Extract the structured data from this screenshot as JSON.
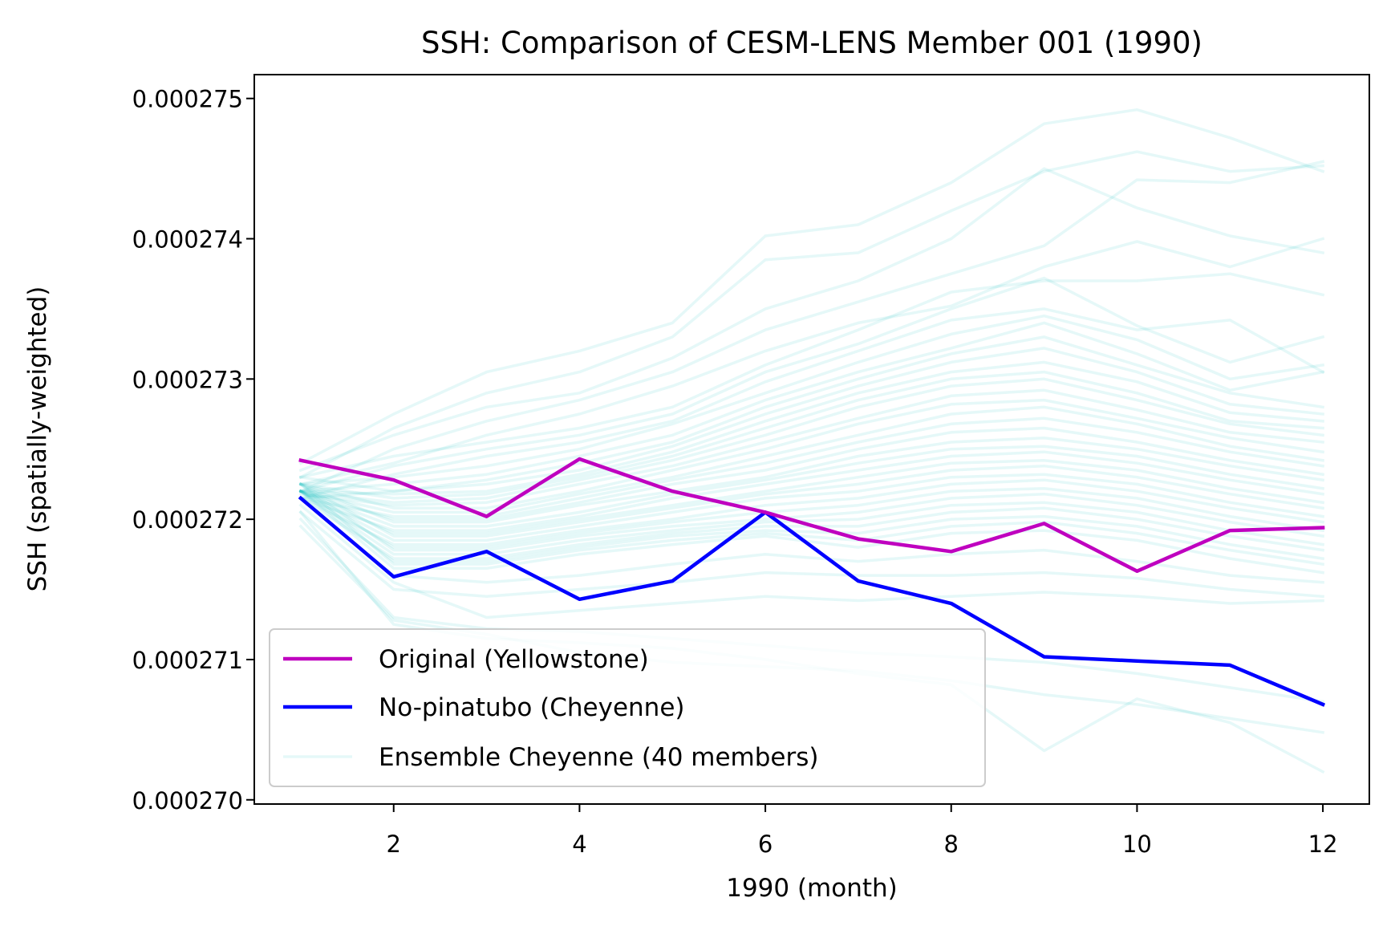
{
  "chart_data": {
    "type": "line",
    "title": "SSH: Comparison of CESM-LENS Member 001 (1990)",
    "xlabel": "1990 (month)",
    "ylabel": "SSH (spatially-weighted)",
    "xlim": [
      0.5,
      12.5
    ],
    "ylim": [
      0.00026997,
      0.00027517
    ],
    "xticks": [
      2,
      4,
      6,
      8,
      10,
      12
    ],
    "xtick_labels": [
      "2",
      "4",
      "6",
      "8",
      "10",
      "12"
    ],
    "yticks": [
      0.00027,
      0.000271,
      0.000272,
      0.000273,
      0.000274,
      0.000275
    ],
    "ytick_labels": [
      "0.000270",
      "0.000271",
      "0.000272",
      "0.000273",
      "0.000274",
      "0.000275"
    ],
    "grid": false,
    "legend_position": "lower-left",
    "x": [
      1,
      2,
      3,
      4,
      5,
      6,
      7,
      8,
      9,
      10,
      11,
      12
    ],
    "series": [
      {
        "name": "Original (Yellowstone)",
        "color": "#bf00bf",
        "values": [
          0.00027242,
          0.00027228,
          0.00027202,
          0.00027243,
          0.0002722,
          0.00027205,
          0.00027186,
          0.00027177,
          0.00027197,
          0.00027163,
          0.00027192,
          0.00027194
        ]
      },
      {
        "name": "No-pinatubo (Cheyenne)",
        "color": "#0000ff",
        "values": [
          0.00027215,
          0.00027159,
          0.00027177,
          0.00027143,
          0.00027156,
          0.00027205,
          0.00027156,
          0.0002714,
          0.00027102,
          0.00027099,
          0.00027096,
          0.00027068
        ]
      },
      {
        "name": "Ensemble Cheyenne (40 members)",
        "color": "#00bfbf",
        "opacity": 0.1,
        "member_values": [
          [
            0.0002724,
            0.00027275,
            0.00027305,
            0.0002732,
            0.0002734,
            0.00027402,
            0.0002741,
            0.0002744,
            0.00027482,
            0.00027492,
            0.00027472,
            0.00027448
          ],
          [
            0.0002723,
            0.00027265,
            0.0002729,
            0.00027305,
            0.0002733,
            0.00027385,
            0.0002739,
            0.0002742,
            0.00027448,
            0.00027462,
            0.00027448,
            0.00027452
          ],
          [
            0.00027235,
            0.0002726,
            0.0002728,
            0.0002729,
            0.00027315,
            0.0002735,
            0.0002737,
            0.000274,
            0.0002745,
            0.00027422,
            0.00027402,
            0.0002739
          ],
          [
            0.0002722,
            0.0002725,
            0.0002727,
            0.00027285,
            0.00027305,
            0.00027335,
            0.00027355,
            0.00027375,
            0.00027395,
            0.00027442,
            0.0002744,
            0.00027455
          ],
          [
            0.00027225,
            0.0002724,
            0.0002726,
            0.00027275,
            0.00027295,
            0.0002732,
            0.0002734,
            0.00027352,
            0.0002738,
            0.00027398,
            0.0002738,
            0.000274
          ],
          [
            0.0002723,
            0.00027245,
            0.00027255,
            0.00027265,
            0.0002728,
            0.0002731,
            0.00027335,
            0.00027362,
            0.0002737,
            0.0002737,
            0.00027375,
            0.0002736
          ],
          [
            0.0002722,
            0.00027238,
            0.0002725,
            0.0002726,
            0.00027275,
            0.00027305,
            0.00027325,
            0.0002735,
            0.00027372,
            0.00027338,
            0.00027312,
            0.0002733
          ],
          [
            0.00027215,
            0.00027232,
            0.00027245,
            0.00027255,
            0.0002727,
            0.00027298,
            0.0002732,
            0.00027342,
            0.0002735,
            0.00027335,
            0.00027342,
            0.00027305
          ],
          [
            0.00027225,
            0.0002723,
            0.00027238,
            0.0002725,
            0.00027268,
            0.0002729,
            0.00027312,
            0.00027332,
            0.00027345,
            0.00027328,
            0.000273,
            0.0002731
          ],
          [
            0.0002722,
            0.00027225,
            0.00027232,
            0.00027245,
            0.0002726,
            0.00027285,
            0.00027305,
            0.00027322,
            0.0002734,
            0.00027318,
            0.00027292,
            0.00027305
          ],
          [
            0.0002723,
            0.0002722,
            0.00027228,
            0.0002724,
            0.00027255,
            0.0002728,
            0.000273,
            0.00027318,
            0.0002733,
            0.0002731,
            0.0002729,
            0.0002728
          ],
          [
            0.00027215,
            0.0002722,
            0.00027225,
            0.00027235,
            0.00027252,
            0.00027275,
            0.00027295,
            0.00027312,
            0.00027322,
            0.00027305,
            0.00027282,
            0.00027275
          ],
          [
            0.0002722,
            0.00027218,
            0.0002722,
            0.00027232,
            0.00027248,
            0.0002727,
            0.0002729,
            0.00027305,
            0.00027312,
            0.00027298,
            0.00027276,
            0.0002727
          ],
          [
            0.00027225,
            0.00027215,
            0.00027218,
            0.0002723,
            0.00027245,
            0.00027265,
            0.00027285,
            0.000273,
            0.00027305,
            0.0002729,
            0.0002727,
            0.00027265
          ],
          [
            0.0002722,
            0.00027212,
            0.00027215,
            0.00027228,
            0.00027242,
            0.0002726,
            0.0002728,
            0.00027295,
            0.000273,
            0.00027285,
            0.00027268,
            0.0002726
          ],
          [
            0.00027218,
            0.0002721,
            0.00027212,
            0.00027225,
            0.00027238,
            0.00027255,
            0.00027272,
            0.00027288,
            0.00027292,
            0.00027278,
            0.00027262,
            0.00027255
          ],
          [
            0.00027225,
            0.00027208,
            0.00027208,
            0.0002722,
            0.00027235,
            0.0002725,
            0.00027268,
            0.00027282,
            0.00027285,
            0.00027272,
            0.00027258,
            0.00027248
          ],
          [
            0.0002722,
            0.00027205,
            0.00027205,
            0.00027218,
            0.0002723,
            0.00027245,
            0.0002726,
            0.00027275,
            0.0002728,
            0.00027268,
            0.00027252,
            0.00027242
          ],
          [
            0.00027215,
            0.00027202,
            0.00027202,
            0.00027215,
            0.00027228,
            0.0002724,
            0.00027255,
            0.00027268,
            0.00027272,
            0.00027262,
            0.00027248,
            0.00027238
          ],
          [
            0.0002722,
            0.000272,
            0.000272,
            0.00027212,
            0.00027225,
            0.00027235,
            0.0002725,
            0.00027262,
            0.00027265,
            0.00027255,
            0.00027242,
            0.00027232
          ],
          [
            0.00027225,
            0.00027198,
            0.00027198,
            0.0002721,
            0.0002722,
            0.0002723,
            0.00027245,
            0.00027255,
            0.00027258,
            0.0002725,
            0.00027238,
            0.00027228
          ],
          [
            0.0002722,
            0.00027195,
            0.00027195,
            0.00027205,
            0.00027218,
            0.00027228,
            0.0002724,
            0.0002725,
            0.00027252,
            0.00027245,
            0.00027232,
            0.00027222
          ],
          [
            0.00027215,
            0.00027192,
            0.00027192,
            0.00027202,
            0.00027215,
            0.00027225,
            0.00027235,
            0.00027245,
            0.00027248,
            0.0002724,
            0.00027228,
            0.00027218
          ],
          [
            0.0002722,
            0.0002719,
            0.0002719,
            0.000272,
            0.0002721,
            0.0002722,
            0.0002723,
            0.0002724,
            0.00027242,
            0.00027235,
            0.00027222,
            0.00027212
          ],
          [
            0.00027225,
            0.00027188,
            0.00027188,
            0.00027198,
            0.00027208,
            0.00027218,
            0.00027225,
            0.00027235,
            0.00027238,
            0.0002723,
            0.00027218,
            0.00027208
          ],
          [
            0.0002722,
            0.00027185,
            0.00027185,
            0.00027195,
            0.00027205,
            0.00027215,
            0.0002722,
            0.0002723,
            0.00027232,
            0.00027225,
            0.00027212,
            0.00027202
          ],
          [
            0.00027215,
            0.00027182,
            0.00027182,
            0.00027192,
            0.000272,
            0.0002721,
            0.00027215,
            0.00027225,
            0.00027228,
            0.0002722,
            0.00027208,
            0.00027198
          ],
          [
            0.0002722,
            0.0002718,
            0.0002718,
            0.0002719,
            0.00027198,
            0.00027205,
            0.0002721,
            0.0002722,
            0.00027222,
            0.00027215,
            0.00027202,
            0.00027192
          ],
          [
            0.00027225,
            0.00027178,
            0.00027178,
            0.00027188,
            0.00027195,
            0.000272,
            0.00027205,
            0.00027215,
            0.00027218,
            0.0002721,
            0.00027198,
            0.00027188
          ],
          [
            0.0002722,
            0.00027175,
            0.00027175,
            0.00027185,
            0.00027192,
            0.00027198,
            0.000272,
            0.0002721,
            0.00027212,
            0.00027205,
            0.00027192,
            0.00027182
          ],
          [
            0.00027215,
            0.00027172,
            0.00027172,
            0.00027182,
            0.0002719,
            0.00027195,
            0.00027195,
            0.00027205,
            0.00027208,
            0.000272,
            0.00027188,
            0.00027178
          ],
          [
            0.0002722,
            0.0002717,
            0.0002717,
            0.0002718,
            0.00027188,
            0.00027192,
            0.0002719,
            0.000272,
            0.00027202,
            0.00027195,
            0.00027182,
            0.00027172
          ],
          [
            0.00027225,
            0.00027168,
            0.00027168,
            0.00027178,
            0.00027185,
            0.0002719,
            0.00027185,
            0.00027195,
            0.00027198,
            0.0002719,
            0.00027178,
            0.00027168
          ],
          [
            0.0002722,
            0.00027165,
            0.00027165,
            0.00027175,
            0.00027182,
            0.00027188,
            0.0002718,
            0.0002719,
            0.00027192,
            0.00027185,
            0.00027172,
            0.00027162
          ],
          [
            0.00027215,
            0.0002716,
            0.00027155,
            0.0002716,
            0.00027168,
            0.00027175,
            0.0002717,
            0.00027175,
            0.00027178,
            0.0002717,
            0.0002716,
            0.00027155
          ],
          [
            0.00027205,
            0.0002715,
            0.00027145,
            0.0002715,
            0.00027155,
            0.00027162,
            0.0002716,
            0.0002716,
            0.00027162,
            0.00027158,
            0.0002715,
            0.00027145
          ],
          [
            0.0002721,
            0.00027155,
            0.0002713,
            0.00027135,
            0.0002714,
            0.00027145,
            0.00027142,
            0.00027145,
            0.00027148,
            0.00027145,
            0.0002714,
            0.00027142
          ],
          [
            0.000272,
            0.0002713,
            0.00027122,
            0.0002712,
            0.00027115,
            0.0002711,
            0.00027105,
            0.00027102,
            0.00027098,
            0.0002709,
            0.0002708,
            0.0002707
          ],
          [
            0.00027205,
            0.00027125,
            0.00027115,
            0.00027112,
            0.00027108,
            0.000271,
            0.0002709,
            0.00027082,
            0.00027035,
            0.00027072,
            0.00027055,
            0.0002702
          ],
          [
            0.00027195,
            0.00027128,
            0.00027118,
            0.00027105,
            0.00027098,
            0.00027095,
            0.00027092,
            0.00027085,
            0.00027075,
            0.00027068,
            0.00027058,
            0.00027048
          ]
        ]
      }
    ]
  }
}
